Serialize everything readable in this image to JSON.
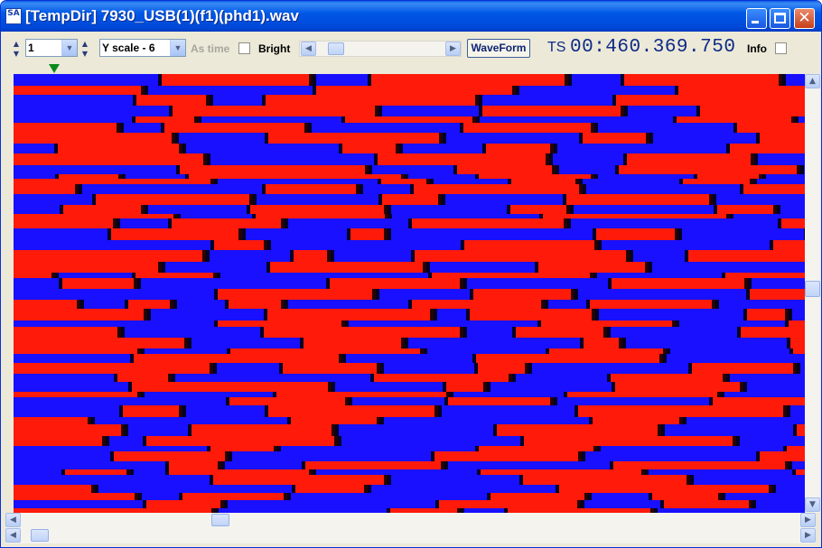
{
  "window": {
    "title": "[TempDir] 7930_USB(1)(f1)(phd1).wav",
    "app_icon_text": "SA"
  },
  "toolbar": {
    "channel_value": "1",
    "y_scale_value": "Y scale - 6",
    "as_time_label": "As time",
    "as_time_checked": false,
    "bright_label": "Bright",
    "bright_checked": false,
    "waveform_label": "WaveForm",
    "ts_label": "TS",
    "ts_value": "00:460.369.750",
    "info_label": "Info",
    "info_checked": false
  },
  "plot": {
    "colors": {
      "positive": "#ff1a0a",
      "negative": "#1810ff",
      "transition": "#000000"
    }
  },
  "icons": {
    "spin_up": "▲",
    "spin_down": "▼",
    "combo_arrow": "▼",
    "scroll_left": "◀",
    "scroll_right": "▶",
    "scroll_up": "▲",
    "scroll_down": "▼",
    "close": "✕"
  }
}
